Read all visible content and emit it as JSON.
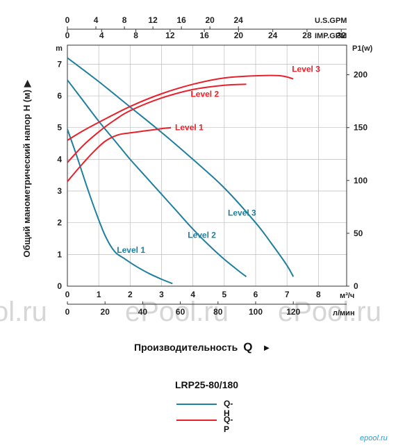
{
  "chart_data": {
    "type": "line",
    "model": "LRP25-80/180",
    "ylabel": "Общий манометрический напор H (м) ▶",
    "y_unit": "m",
    "ylim": [
      0,
      7.6
    ],
    "yticks": [
      0,
      1,
      2,
      3,
      4,
      5,
      6,
      7
    ],
    "y2_unit": "P1(w)",
    "y2lim": [
      0,
      228
    ],
    "y2ticks": [
      0,
      50,
      100,
      150,
      200
    ],
    "x_axes": {
      "usgpm": {
        "unit": "U.S.GPM",
        "ticks": [
          0,
          4,
          8,
          12,
          16,
          20,
          24
        ],
        "per_m3h": 4.4033
      },
      "impgpm": {
        "unit": "IMP.GPM",
        "ticks": [
          0,
          4,
          8,
          12,
          16,
          20,
          24,
          28,
          32
        ],
        "per_m3h": 3.6662
      },
      "m3h": {
        "unit": "м³/ч",
        "ticks": [
          0,
          1,
          2,
          3,
          4,
          5,
          6,
          7,
          8
        ],
        "range": [
          0,
          8.9
        ]
      },
      "lmin": {
        "unit": "л/мин",
        "ticks": [
          0,
          20,
          40,
          60,
          80,
          100,
          120
        ],
        "per_m3h": 16.667
      }
    },
    "xlabel": "Производительность",
    "xlabel_symbol": "Q",
    "xlabel_arrow": "►",
    "legend": [
      {
        "name": "Q-H",
        "color": "#1f7f9e"
      },
      {
        "name": "Q-P",
        "color": "#e8202a"
      }
    ],
    "series": [
      {
        "name": "Level 1",
        "kind": "Q-H",
        "color": "#1f7f9e",
        "x": [
          0,
          0.3,
          0.6,
          0.9,
          1.2,
          1.5,
          1.8,
          2.2,
          2.6,
          3.0,
          3.35
        ],
        "y": [
          4.95,
          4.1,
          3.2,
          2.35,
          1.6,
          1.1,
          0.88,
          0.62,
          0.4,
          0.22,
          0.08
        ]
      },
      {
        "name": "Level 2",
        "kind": "Q-H",
        "color": "#1f7f9e",
        "x": [
          0,
          0.5,
          1.0,
          1.5,
          2.0,
          2.5,
          3.0,
          3.5,
          4.0,
          4.5,
          5.0,
          5.5,
          5.7
        ],
        "y": [
          6.5,
          5.85,
          5.2,
          4.6,
          4.0,
          3.45,
          2.9,
          2.35,
          1.8,
          1.3,
          0.85,
          0.45,
          0.3
        ]
      },
      {
        "name": "Level 3",
        "kind": "Q-H",
        "color": "#1f7f9e",
        "x": [
          0,
          1,
          2,
          3,
          4,
          5,
          6,
          6.5,
          7,
          7.2
        ],
        "y": [
          7.2,
          6.45,
          5.65,
          4.85,
          4.0,
          3.1,
          2.0,
          1.35,
          0.65,
          0.3
        ]
      },
      {
        "name": "Level 1",
        "kind": "Q-P",
        "color": "#e8202a",
        "x": [
          0,
          0.4,
          0.8,
          1.2,
          1.6,
          2.0,
          2.5,
          3.0,
          3.3
        ],
        "y": [
          99,
          113,
          126,
          137,
          143,
          145,
          147,
          149,
          150
        ]
      },
      {
        "name": "Level 2",
        "kind": "Q-P",
        "color": "#e8202a",
        "x": [
          0,
          0.5,
          1,
          1.5,
          2,
          3,
          4,
          5,
          5.7
        ],
        "y": [
          117,
          133,
          146,
          157,
          166,
          178,
          186,
          190,
          191
        ]
      },
      {
        "name": "Level 3",
        "kind": "Q-P",
        "color": "#e8202a",
        "x": [
          0,
          0.5,
          1,
          2,
          3,
          4,
          5,
          6,
          6.8,
          7.2
        ],
        "y": [
          138,
          147,
          155,
          170,
          182,
          191,
          197,
          199,
          199,
          196
        ]
      }
    ]
  },
  "watermarks": [
    "ol.ru",
    "ePool.ru",
    "ePool.ru"
  ],
  "brand": "epool.ru"
}
